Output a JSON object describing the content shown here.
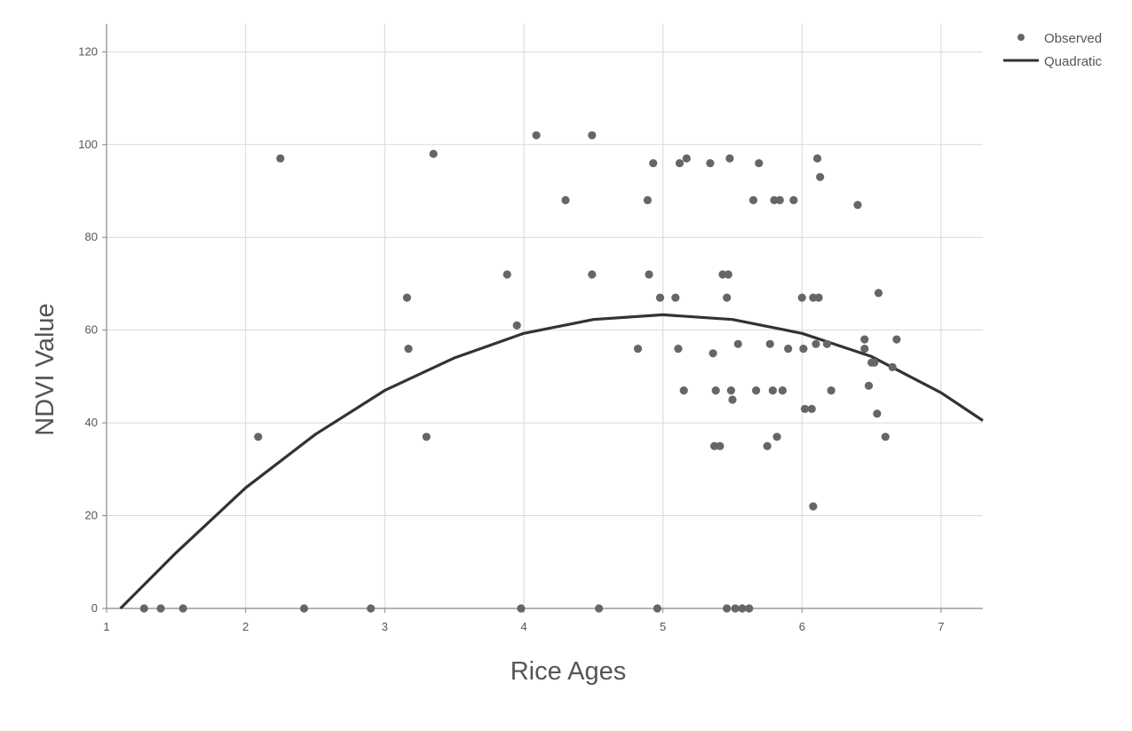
{
  "chart_data": {
    "type": "scatter",
    "title": "",
    "xlabel": "Rice Ages",
    "ylabel": "NDVI Value",
    "xlim": [
      1,
      7.3
    ],
    "ylim": [
      0,
      126
    ],
    "x_ticks": [
      1,
      2,
      3,
      4,
      5,
      6,
      7
    ],
    "y_ticks": [
      0,
      20,
      40,
      60,
      80,
      100,
      120
    ],
    "grid": true,
    "legend": {
      "placement": "top-right",
      "entries": [
        {
          "label": "Observed",
          "kind": "marker"
        },
        {
          "label": "Quadratic",
          "kind": "line"
        }
      ]
    },
    "colors": {
      "points": "#666666",
      "curve": "#333333",
      "grid": "#d9d9d9",
      "axis": "#888888"
    },
    "series": [
      {
        "name": "Observed",
        "type": "scatter",
        "points": [
          [
            1.27,
            0
          ],
          [
            1.39,
            0
          ],
          [
            1.55,
            0
          ],
          [
            2.09,
            37
          ],
          [
            2.25,
            97
          ],
          [
            2.42,
            0
          ],
          [
            2.9,
            0
          ],
          [
            3.16,
            67
          ],
          [
            3.17,
            56
          ],
          [
            3.3,
            37
          ],
          [
            3.35,
            98
          ],
          [
            3.88,
            72
          ],
          [
            3.95,
            61
          ],
          [
            3.98,
            0
          ],
          [
            4.09,
            102
          ],
          [
            4.3,
            88
          ],
          [
            4.49,
            102
          ],
          [
            4.49,
            72
          ],
          [
            4.54,
            0
          ],
          [
            4.82,
            56
          ],
          [
            4.89,
            88
          ],
          [
            4.9,
            72
          ],
          [
            4.93,
            96
          ],
          [
            4.96,
            0
          ],
          [
            4.98,
            67
          ],
          [
            5.09,
            67
          ],
          [
            5.11,
            56
          ],
          [
            5.12,
            96
          ],
          [
            5.15,
            47
          ],
          [
            5.17,
            97
          ],
          [
            5.34,
            96
          ],
          [
            5.36,
            55
          ],
          [
            5.37,
            35
          ],
          [
            5.38,
            47
          ],
          [
            5.41,
            35
          ],
          [
            5.43,
            72
          ],
          [
            5.46,
            67
          ],
          [
            5.46,
            0
          ],
          [
            5.47,
            72
          ],
          [
            5.48,
            97
          ],
          [
            5.49,
            47
          ],
          [
            5.5,
            45
          ],
          [
            5.52,
            0
          ],
          [
            5.54,
            57
          ],
          [
            5.57,
            0
          ],
          [
            5.62,
            0
          ],
          [
            5.65,
            88
          ],
          [
            5.67,
            47
          ],
          [
            5.69,
            96
          ],
          [
            5.75,
            35
          ],
          [
            5.77,
            57
          ],
          [
            5.79,
            47
          ],
          [
            5.8,
            88
          ],
          [
            5.82,
            37
          ],
          [
            5.84,
            88
          ],
          [
            5.86,
            47
          ],
          [
            5.9,
            56
          ],
          [
            5.94,
            88
          ],
          [
            6.0,
            67
          ],
          [
            6.01,
            56
          ],
          [
            6.02,
            43
          ],
          [
            6.07,
            43
          ],
          [
            6.08,
            67
          ],
          [
            6.08,
            22
          ],
          [
            6.1,
            57
          ],
          [
            6.11,
            97
          ],
          [
            6.12,
            67
          ],
          [
            6.13,
            93
          ],
          [
            6.18,
            57
          ],
          [
            6.21,
            47
          ],
          [
            6.4,
            87
          ],
          [
            6.45,
            58
          ],
          [
            6.45,
            56
          ],
          [
            6.48,
            48
          ],
          [
            6.5,
            53
          ],
          [
            6.52,
            53
          ],
          [
            6.54,
            42
          ],
          [
            6.55,
            68
          ],
          [
            6.6,
            37
          ],
          [
            6.65,
            52
          ],
          [
            6.68,
            58
          ]
        ]
      },
      {
        "name": "Quadratic",
        "type": "line",
        "points": [
          [
            1.1,
            0
          ],
          [
            1.5,
            12
          ],
          [
            2.0,
            26
          ],
          [
            2.5,
            37.5
          ],
          [
            3.0,
            47
          ],
          [
            3.5,
            54
          ],
          [
            4.0,
            59.3
          ],
          [
            4.5,
            62.3
          ],
          [
            5.0,
            63.3
          ],
          [
            5.5,
            62.3
          ],
          [
            6.0,
            59.3
          ],
          [
            6.5,
            54.3
          ],
          [
            7.0,
            46.5
          ],
          [
            7.3,
            40.5
          ]
        ]
      }
    ]
  }
}
